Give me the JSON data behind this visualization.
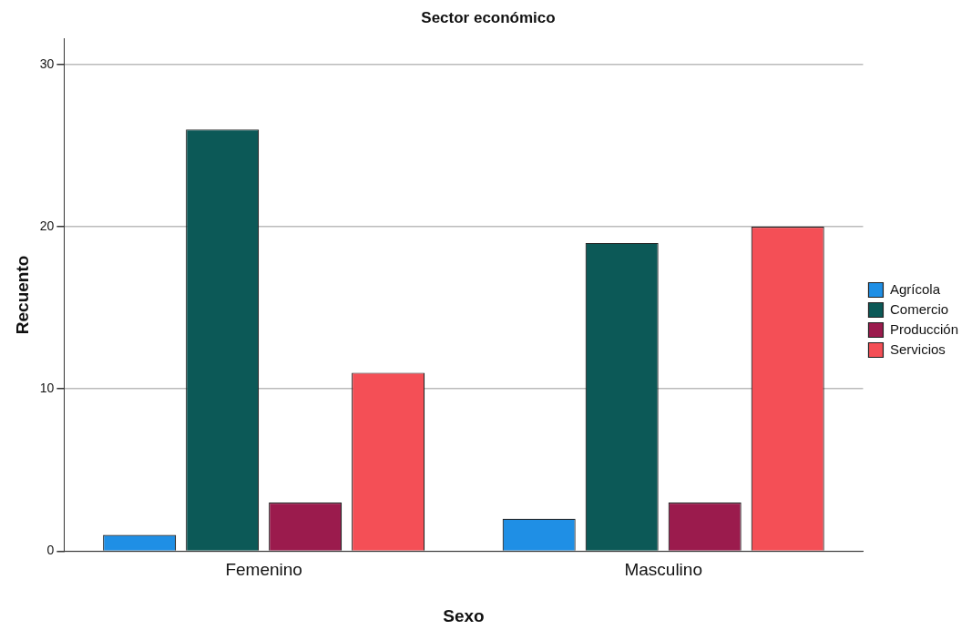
{
  "chart_data": {
    "type": "bar",
    "title": "Sector económico",
    "xlabel": "Sexo",
    "ylabel": "Recuento",
    "categories": [
      "Femenino",
      "Masculino"
    ],
    "series": [
      {
        "name": "Agrícola",
        "color": "#1f8fe5",
        "values": [
          1,
          2
        ]
      },
      {
        "name": "Comercio",
        "color": "#0c5957",
        "values": [
          26,
          19
        ]
      },
      {
        "name": "Producción",
        "color": "#9b1b4d",
        "values": [
          3,
          3
        ]
      },
      {
        "name": "Servicios",
        "color": "#f44f56",
        "values": [
          11,
          20
        ]
      }
    ],
    "ylim": [
      0,
      31.6
    ],
    "yticks": [
      0,
      10,
      20,
      30
    ],
    "grid": "y",
    "legend": "right"
  }
}
